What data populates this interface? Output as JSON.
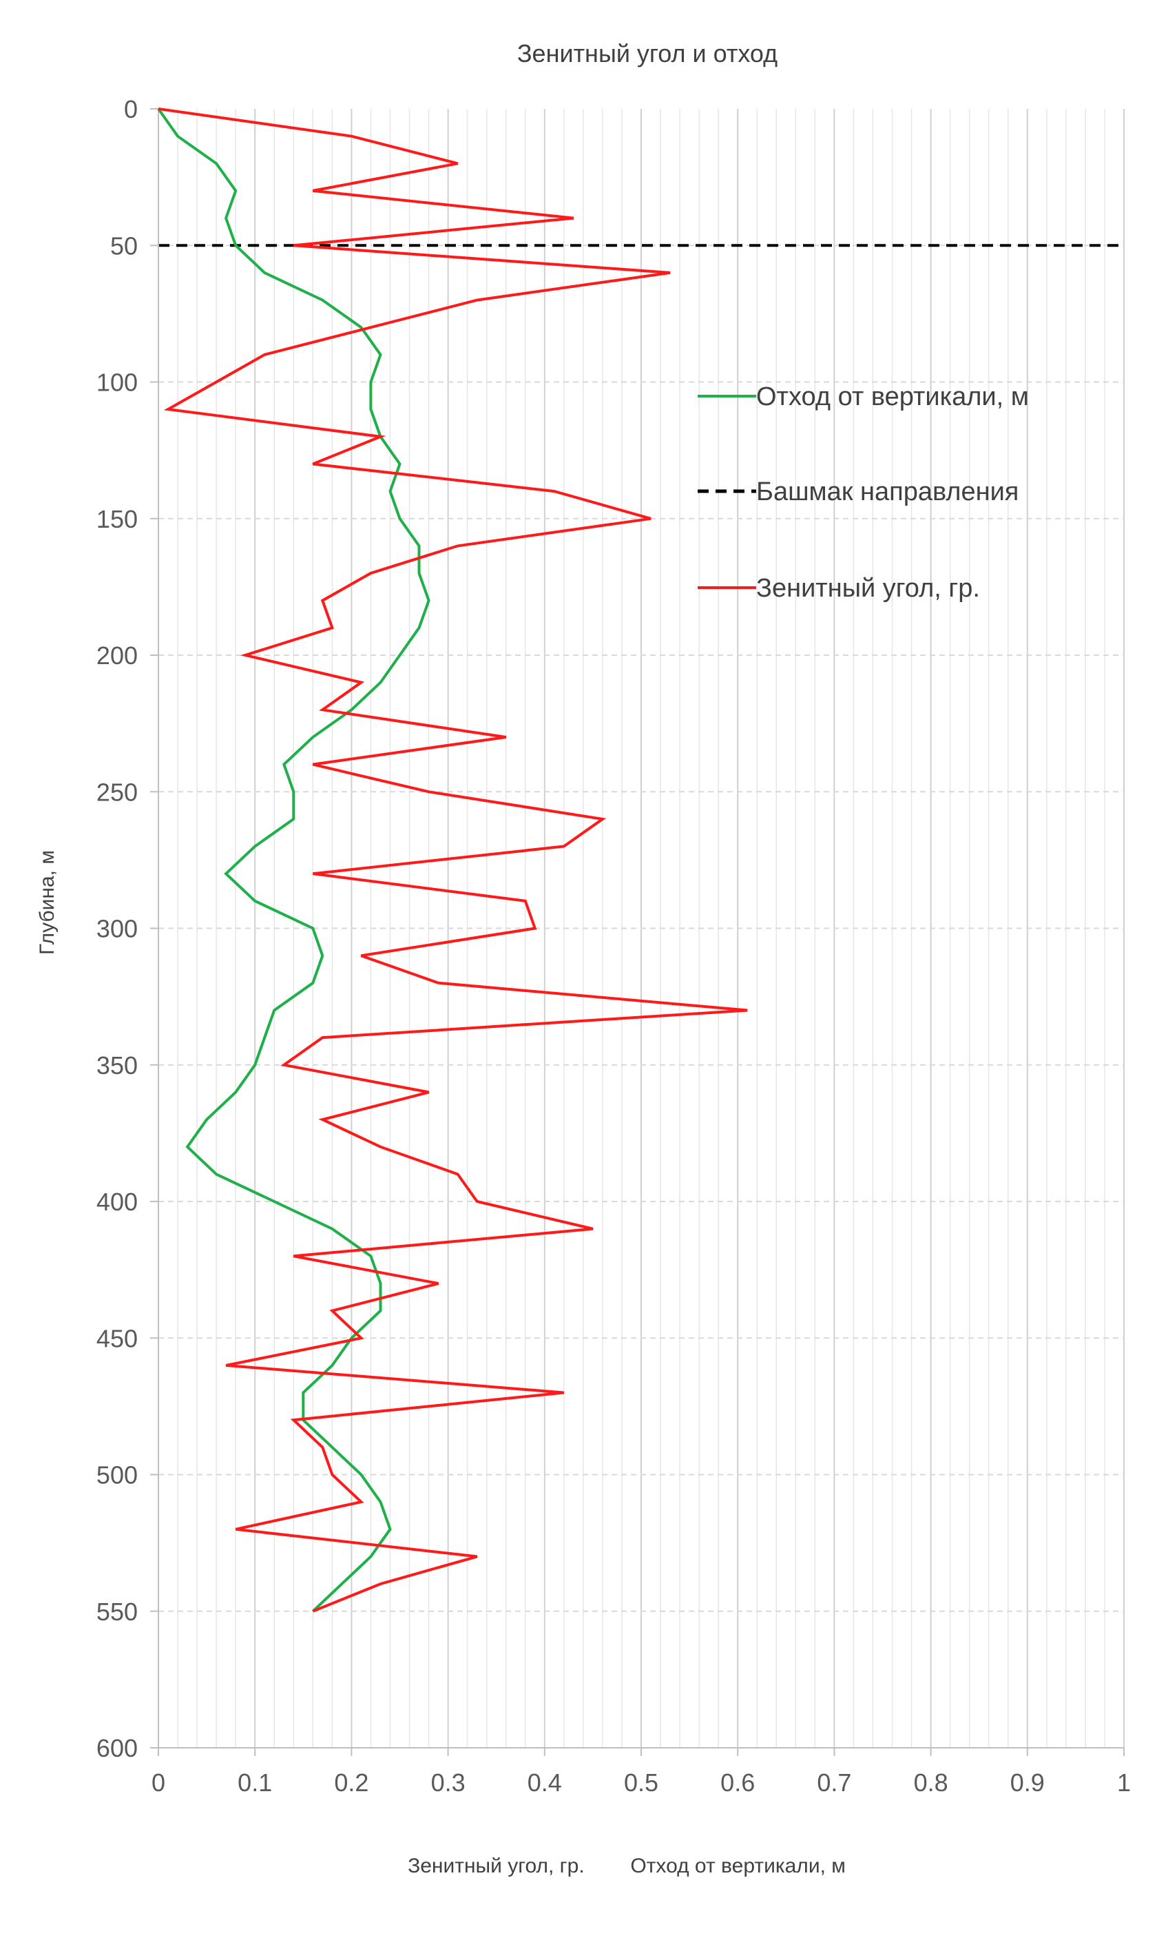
{
  "chart_data": {
    "type": "line",
    "title": "Зенитный угол и отход",
    "xlabel": "Зенитный угол, гр.        Отход от вертикали, м",
    "ylabel": "Глубина, м",
    "xlim": [
      0,
      1
    ],
    "ylim": [
      600,
      0
    ],
    "y_inverted": true,
    "x_ticks": [
      "0",
      "0.1",
      "0.2",
      "0.3",
      "0.4",
      "0.5",
      "0.6",
      "0.7",
      "0.8",
      "0.9",
      "1"
    ],
    "y_ticks": [
      "0",
      "50",
      "100",
      "150",
      "200",
      "250",
      "300",
      "350",
      "400",
      "450",
      "500",
      "550",
      "600"
    ],
    "grid": "on",
    "legend_position": "right",
    "reference_line": {
      "name": "Башмак направления",
      "depth": 50,
      "color": "#000000",
      "style": "dashed"
    },
    "series": [
      {
        "name": "Отход от вертикали, м",
        "color": "#1fb04a",
        "points": [
          [
            0,
            0
          ],
          [
            0.02,
            10
          ],
          [
            0.06,
            20
          ],
          [
            0.08,
            30
          ],
          [
            0.07,
            40
          ],
          [
            0.08,
            50
          ],
          [
            0.11,
            60
          ],
          [
            0.17,
            70
          ],
          [
            0.21,
            80
          ],
          [
            0.23,
            90
          ],
          [
            0.22,
            100
          ],
          [
            0.22,
            110
          ],
          [
            0.23,
            120
          ],
          [
            0.25,
            130
          ],
          [
            0.24,
            140
          ],
          [
            0.25,
            150
          ],
          [
            0.27,
            160
          ],
          [
            0.27,
            170
          ],
          [
            0.28,
            180
          ],
          [
            0.27,
            190
          ],
          [
            0.25,
            200
          ],
          [
            0.23,
            210
          ],
          [
            0.2,
            220
          ],
          [
            0.16,
            230
          ],
          [
            0.13,
            240
          ],
          [
            0.14,
            250
          ],
          [
            0.14,
            260
          ],
          [
            0.1,
            270
          ],
          [
            0.07,
            280
          ],
          [
            0.1,
            290
          ],
          [
            0.16,
            300
          ],
          [
            0.17,
            310
          ],
          [
            0.16,
            320
          ],
          [
            0.12,
            330
          ],
          [
            0.11,
            340
          ],
          [
            0.1,
            350
          ],
          [
            0.08,
            360
          ],
          [
            0.05,
            370
          ],
          [
            0.03,
            380
          ],
          [
            0.06,
            390
          ],
          [
            0.12,
            400
          ],
          [
            0.18,
            410
          ],
          [
            0.22,
            420
          ],
          [
            0.23,
            430
          ],
          [
            0.23,
            440
          ],
          [
            0.2,
            450
          ],
          [
            0.18,
            460
          ],
          [
            0.15,
            470
          ],
          [
            0.15,
            480
          ],
          [
            0.18,
            490
          ],
          [
            0.21,
            500
          ],
          [
            0.23,
            510
          ],
          [
            0.24,
            520
          ],
          [
            0.22,
            530
          ],
          [
            0.19,
            540
          ],
          [
            0.16,
            550
          ]
        ]
      },
      {
        "name": "Зенитный угол, гр.",
        "color": "#ff1a1a",
        "points": [
          [
            0,
            0
          ],
          [
            0.2,
            10
          ],
          [
            0.31,
            20
          ],
          [
            0.16,
            30
          ],
          [
            0.43,
            40
          ],
          [
            0.14,
            50
          ],
          [
            0.53,
            60
          ],
          [
            0.33,
            70
          ],
          [
            0.22,
            80
          ],
          [
            0.11,
            90
          ],
          [
            0.06,
            100
          ],
          [
            0.01,
            110
          ],
          [
            0.23,
            120
          ],
          [
            0.16,
            130
          ],
          [
            0.41,
            140
          ],
          [
            0.51,
            150
          ],
          [
            0.31,
            160
          ],
          [
            0.22,
            170
          ],
          [
            0.17,
            180
          ],
          [
            0.18,
            190
          ],
          [
            0.09,
            200
          ],
          [
            0.21,
            210
          ],
          [
            0.17,
            220
          ],
          [
            0.36,
            230
          ],
          [
            0.16,
            240
          ],
          [
            0.28,
            250
          ],
          [
            0.46,
            260
          ],
          [
            0.42,
            270
          ],
          [
            0.16,
            280
          ],
          [
            0.38,
            290
          ],
          [
            0.39,
            300
          ],
          [
            0.21,
            310
          ],
          [
            0.29,
            320
          ],
          [
            0.61,
            330
          ],
          [
            0.17,
            340
          ],
          [
            0.13,
            350
          ],
          [
            0.28,
            360
          ],
          [
            0.17,
            370
          ],
          [
            0.23,
            380
          ],
          [
            0.31,
            390
          ],
          [
            0.33,
            400
          ],
          [
            0.45,
            410
          ],
          [
            0.14,
            420
          ],
          [
            0.29,
            430
          ],
          [
            0.18,
            440
          ],
          [
            0.21,
            450
          ],
          [
            0.07,
            460
          ],
          [
            0.42,
            470
          ],
          [
            0.14,
            480
          ],
          [
            0.17,
            490
          ],
          [
            0.18,
            500
          ],
          [
            0.21,
            510
          ],
          [
            0.08,
            520
          ],
          [
            0.33,
            530
          ],
          [
            0.23,
            540
          ],
          [
            0.16,
            550
          ]
        ]
      }
    ]
  }
}
